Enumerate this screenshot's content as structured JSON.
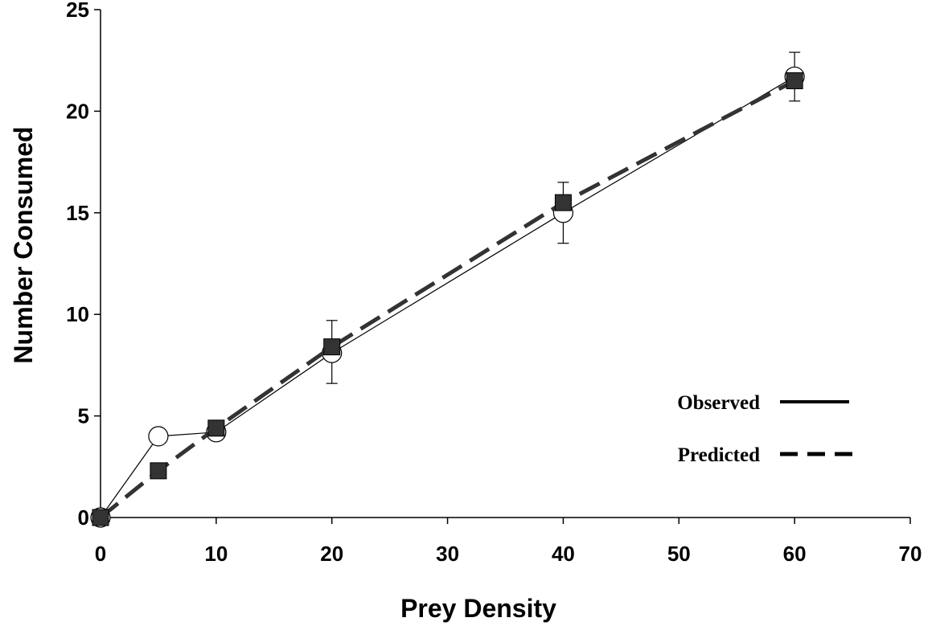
{
  "chart_data": {
    "type": "line",
    "title": "",
    "xlabel": "Prey Density",
    "ylabel": "Number Consumed",
    "xlim": [
      0,
      70
    ],
    "ylim": [
      0,
      25
    ],
    "x_ticks": [
      0,
      10,
      20,
      30,
      40,
      50,
      60,
      70
    ],
    "y_ticks": [
      0,
      5,
      10,
      15,
      20,
      25
    ],
    "grid": false,
    "legend_position": "lower-right",
    "series": [
      {
        "name": "Observed",
        "line_style": "solid",
        "marker": "open-circle",
        "color": "#000000",
        "x": [
          0,
          5,
          10,
          20,
          40,
          60
        ],
        "y": [
          0,
          4.0,
          4.2,
          8.1,
          15.0,
          21.7
        ],
        "error_low": [
          null,
          null,
          null,
          6.6,
          13.5,
          20.5
        ],
        "error_high": [
          null,
          null,
          null,
          9.7,
          16.5,
          22.9
        ]
      },
      {
        "name": "Predicted",
        "line_style": "dashed",
        "marker": "filled-square",
        "color": "#333333",
        "x": [
          0,
          5,
          10,
          20,
          40,
          60
        ],
        "y": [
          0,
          2.3,
          4.4,
          8.4,
          15.5,
          21.5
        ]
      }
    ]
  }
}
